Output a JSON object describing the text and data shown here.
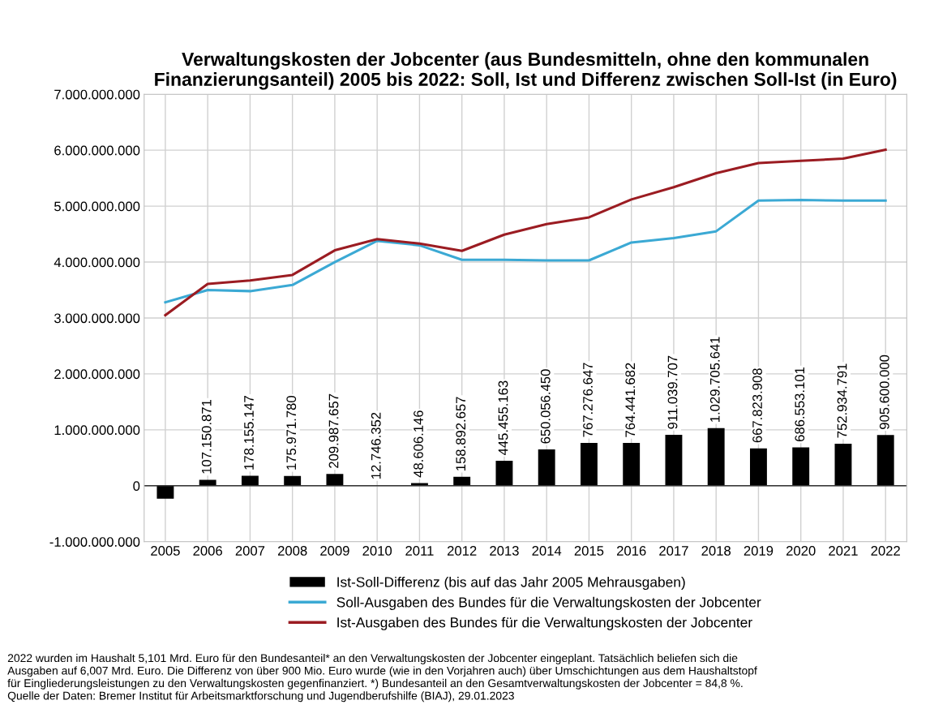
{
  "chart_data": {
    "type": "bar",
    "title": "Verwaltungskosten der Jobcenter (aus Bundesmitteln, ohne den kommunalen Finanzierungsanteil) 2005 bis 2022: Soll, Ist und Differenz zwischen Soll-Ist (in Euro)",
    "categories": [
      "2005",
      "2006",
      "2007",
      "2008",
      "2009",
      "2010",
      "2011",
      "2012",
      "2013",
      "2014",
      "2015",
      "2016",
      "2017",
      "2018",
      "2019",
      "2020",
      "2021",
      "2022"
    ],
    "series": [
      {
        "name": "Ist-Soll-Differenz (bis auf das Jahr 2005 Mehrausgaben)",
        "color": "#000000",
        "values": [
          -230000000,
          107150871,
          178155147,
          175971780,
          209987657,
          12746352,
          48606146,
          158892657,
          445455163,
          650056450,
          767276647,
          764441682,
          911039707,
          1029705641,
          667823908,
          686553101,
          752934791,
          905600000
        ],
        "value_labels": [
          null,
          "107.150.871",
          "178.155.147",
          "175.971.780",
          "209.987.657",
          "12.746.352",
          "48.606.146",
          "158.892.657",
          "445.455.163",
          "650.056.450",
          "767.276.647",
          "764.441.682",
          "911.039.707",
          "1.029.705.641",
          "667.823.908",
          "686.553.101",
          "752.934.791",
          "905.600.000"
        ]
      },
      {
        "name": "Soll-Ausgaben des Bundes für die Verwaltungskosten der Jobcenter",
        "type": "line",
        "color": "#3ba9d4",
        "values": [
          3280000000,
          3500000000,
          3480000000,
          3590000000,
          4000000000,
          4380000000,
          4300000000,
          4040000000,
          4040000000,
          4030000000,
          4030000000,
          4350000000,
          4430000000,
          4550000000,
          5100000000,
          5110000000,
          5100000000,
          5100000000
        ]
      },
      {
        "name": "Ist-Ausgaben des Bundes für die Verwaltungskosten der Jobcenter",
        "type": "line",
        "color": "#9b1c22",
        "values": [
          3050000000,
          3610000000,
          3670000000,
          3770000000,
          4210000000,
          4410000000,
          4330000000,
          4200000000,
          4490000000,
          4680000000,
          4800000000,
          5120000000,
          5340000000,
          5590000000,
          5770000000,
          5810000000,
          5850000000,
          6010000000
        ]
      }
    ],
    "ylim": [
      -1000000000,
      7000000000
    ],
    "yticks": [
      {
        "value": -1000000000,
        "label": "-1.000.000.000"
      },
      {
        "value": 0,
        "label": "0"
      },
      {
        "value": 1000000000,
        "label": "1.000.000.000"
      },
      {
        "value": 2000000000,
        "label": "2.000.000.000"
      },
      {
        "value": 3000000000,
        "label": "3.000.000.000"
      },
      {
        "value": 4000000000,
        "label": "4.000.000.000"
      },
      {
        "value": 5000000000,
        "label": "5.000.000.000"
      },
      {
        "value": 6000000000,
        "label": "6.000.000.000"
      },
      {
        "value": 7000000000,
        "label": "7.000.000.000"
      }
    ],
    "grid": true,
    "legend": "bottom",
    "marker": "none",
    "line_style": "solid",
    "annotations": [
      "2022 wurden im Haushalt 5,101 Mrd. Euro für den Bundesanteil* an den Verwaltungskosten der Jobcenter eingeplant. Tatsächlich beliefen sich die\nAusgaben auf 6,007 Mrd. Euro. Die Differenz von über 900 Mio. Euro wurde (wie in den Vorjahren auch) über Umschichtungen aus dem Haushaltstopf\nfür Eingliederungsleistungen zu den Verwaltungskosten gegenfinanziert. *) Bundesanteil an den Gesamtverwaltungskosten der Jobcenter = 84,8 %.\nQuelle der Daten: Bremer Institut für Arbeitsmarktforschung und Jugendberufshilfe (BIAJ), 29.01.2023"
    ]
  }
}
